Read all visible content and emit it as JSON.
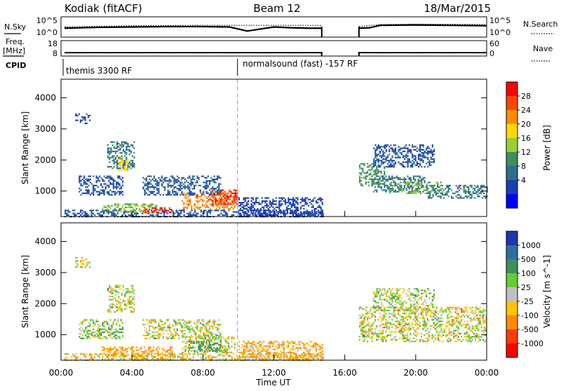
{
  "header": {
    "left_title": "Kodiak (fitACF)",
    "beam": "Beam 12",
    "date": "18/Mar/2015"
  },
  "panels": {
    "nsky_label": "N.Sky",
    "nsky_ticks": [
      "10^5",
      "10^0"
    ],
    "nsearch_label": "N.Search",
    "nsearch_ticks": [
      "10^5",
      "10^0"
    ],
    "freq_label_1": "Freq.",
    "freq_label_2": "[MHz]",
    "freq_ticks": [
      "18",
      "8"
    ],
    "nave_label": "Nave",
    "nave_ticks": [
      "60",
      "0"
    ],
    "cpid_label": "CPID",
    "cpid_segments": [
      "themis 3300 RF",
      "normalsound (fast) -157 RF"
    ]
  },
  "axes": {
    "x_label": "Time UT",
    "x_ticks": [
      "00:00",
      "04:00",
      "08:00",
      "12:00",
      "16:00",
      "20:00",
      "00:00"
    ],
    "y_label": "Slant Range [km]",
    "y_ticks": [
      "4000",
      "3000",
      "2000",
      "1000"
    ]
  },
  "colorbars": {
    "power": {
      "label": "Power [dB]",
      "ticks": [
        "28",
        "24",
        "20",
        "16",
        "12",
        "8",
        "4"
      ],
      "colors": [
        "#0000ff",
        "#1b3fb0",
        "#2e6e8a",
        "#3f8f5f",
        "#9acd32",
        "#ffd700",
        "#ff8c00",
        "#ff4500",
        "#ff0000"
      ]
    },
    "velocity": {
      "label": "Velocity [m s^-1]",
      "ticks": [
        "1000",
        "500",
        "100",
        "25",
        "-25",
        "-100",
        "-500",
        "-1000"
      ],
      "colors": [
        "#1d38a8",
        "#2e6fa0",
        "#3d8f5a",
        "#66cc33",
        "#c0c0c0",
        "#ffc400",
        "#ff8c00",
        "#ff3c00",
        "#ff0000"
      ]
    }
  },
  "chart_data": [
    {
      "type": "line",
      "title": "N.Sky / N.Search",
      "x_units": "hours UT",
      "ylabel": "N.Sky",
      "ylim_log10": [
        0,
        5
      ],
      "series": [
        {
          "name": "N.Sky",
          "x": [
            0.2,
            2,
            4,
            6,
            8,
            9.5,
            10.5,
            12,
            13,
            14,
            14.7,
            16.8,
            17.4,
            18,
            20,
            22,
            24
          ],
          "values_log10": [
            2.2,
            2.4,
            2.5,
            2.6,
            2.6,
            2.5,
            1.5,
            2.5,
            2.3,
            2.2,
            2.2,
            2.2,
            2.3,
            2.9,
            3.0,
            2.9,
            2.8
          ]
        },
        {
          "name": "N.Search",
          "x": [
            0.2,
            4,
            8,
            12,
            14.7,
            16.8,
            18,
            20,
            24
          ],
          "values_log10": [
            2.5,
            2.8,
            2.9,
            2.9,
            2.9,
            2.6,
            3.1,
            3.2,
            3.1
          ]
        }
      ],
      "gap_hours": [
        14.8,
        16.8
      ]
    },
    {
      "type": "line",
      "title": "Freq. / Nave",
      "x_units": "hours UT",
      "freq_ylim": [
        8,
        18
      ],
      "nave_ylim": [
        0,
        60
      ],
      "series": [
        {
          "name": "Freq.",
          "x": [
            0.2,
            14.7,
            16.8,
            24
          ],
          "values": [
            10.2,
            10.2,
            10.2,
            10.2
          ]
        },
        {
          "name": "Nave",
          "x": [
            0.2,
            14.7,
            16.8,
            24
          ],
          "values": [
            12,
            12,
            12,
            12
          ]
        }
      ],
      "cpid_change_hour": 9.95
    },
    {
      "type": "heatmap",
      "title": "Power [dB]",
      "xlabel": "Time UT",
      "ylabel": "Slant Range [km]",
      "xlim_hours": [
        0,
        24
      ],
      "ylim_km": [
        180,
        4600
      ],
      "zlim": [
        0,
        30
      ],
      "regions": [
        {
          "t0": 0.2,
          "t1": 14.8,
          "r0": 200,
          "r1": 400,
          "value": 6
        },
        {
          "t0": 2.3,
          "t1": 5.5,
          "r0": 350,
          "r1": 600,
          "value": 14
        },
        {
          "t0": 4.6,
          "t1": 6.3,
          "r0": 300,
          "r1": 480,
          "value": 27
        },
        {
          "t0": 6.8,
          "t1": 9.8,
          "r0": 450,
          "r1": 950,
          "value": 22
        },
        {
          "t0": 8.5,
          "t1": 9.9,
          "r0": 600,
          "r1": 1050,
          "value": 26
        },
        {
          "t0": 2.6,
          "t1": 4.1,
          "r0": 1750,
          "r1": 2600,
          "value": 9
        },
        {
          "t0": 3.2,
          "t1": 3.8,
          "r0": 1700,
          "r1": 2100,
          "value": 18
        },
        {
          "t0": 1.0,
          "t1": 3.5,
          "r0": 900,
          "r1": 1500,
          "value": 6
        },
        {
          "t0": 4.6,
          "t1": 9.0,
          "r0": 900,
          "r1": 1500,
          "value": 7
        },
        {
          "t0": 10.0,
          "t1": 14.7,
          "r0": 200,
          "r1": 800,
          "value": 5
        },
        {
          "t0": 16.8,
          "t1": 18.2,
          "r0": 1200,
          "r1": 1900,
          "value": 12
        },
        {
          "t0": 17.5,
          "t1": 20.5,
          "r0": 1000,
          "r1": 1500,
          "value": 9
        },
        {
          "t0": 18.5,
          "t1": 21.5,
          "r0": 950,
          "r1": 1300,
          "value": 13
        },
        {
          "t0": 20.5,
          "t1": 24.0,
          "r0": 800,
          "r1": 1200,
          "value": 9
        },
        {
          "t0": 17.6,
          "t1": 21.0,
          "r0": 1800,
          "r1": 2500,
          "value": 6
        },
        {
          "t0": 0.8,
          "t1": 1.6,
          "r0": 3200,
          "r1": 3500,
          "value": 5
        }
      ]
    },
    {
      "type": "heatmap",
      "title": "Velocity [m s^-1]",
      "xlabel": "Time UT",
      "ylabel": "Slant Range [km]",
      "xlim_hours": [
        0,
        24
      ],
      "ylim_km": [
        180,
        4600
      ],
      "zlim": [
        -1000,
        1000
      ],
      "regions": [
        {
          "t0": 0.2,
          "t1": 14.8,
          "r0": 200,
          "r1": 400,
          "value": -50
        },
        {
          "t0": 2.3,
          "t1": 6.3,
          "r0": 300,
          "r1": 620,
          "value": -150
        },
        {
          "t0": 6.8,
          "t1": 9.8,
          "r0": 450,
          "r1": 950,
          "value": 0
        },
        {
          "t0": 7.2,
          "t1": 9.0,
          "r0": 500,
          "r1": 800,
          "value": 200
        },
        {
          "t0": 2.6,
          "t1": 4.1,
          "r0": 1750,
          "r1": 2600,
          "value": 0
        },
        {
          "t0": 1.0,
          "t1": 3.5,
          "r0": 900,
          "r1": 1500,
          "value": 50
        },
        {
          "t0": 4.6,
          "t1": 9.0,
          "r0": 900,
          "r1": 1500,
          "value": 0
        },
        {
          "t0": 10.0,
          "t1": 14.7,
          "r0": 200,
          "r1": 800,
          "value": -100
        },
        {
          "t0": 16.8,
          "t1": 24.0,
          "r0": 800,
          "r1": 1900,
          "value": 0
        },
        {
          "t0": 17.6,
          "t1": 21.0,
          "r0": 1800,
          "r1": 2500,
          "value": 20
        },
        {
          "t0": 0.8,
          "t1": 1.6,
          "r0": 3200,
          "r1": 3500,
          "value": -30
        }
      ]
    }
  ]
}
